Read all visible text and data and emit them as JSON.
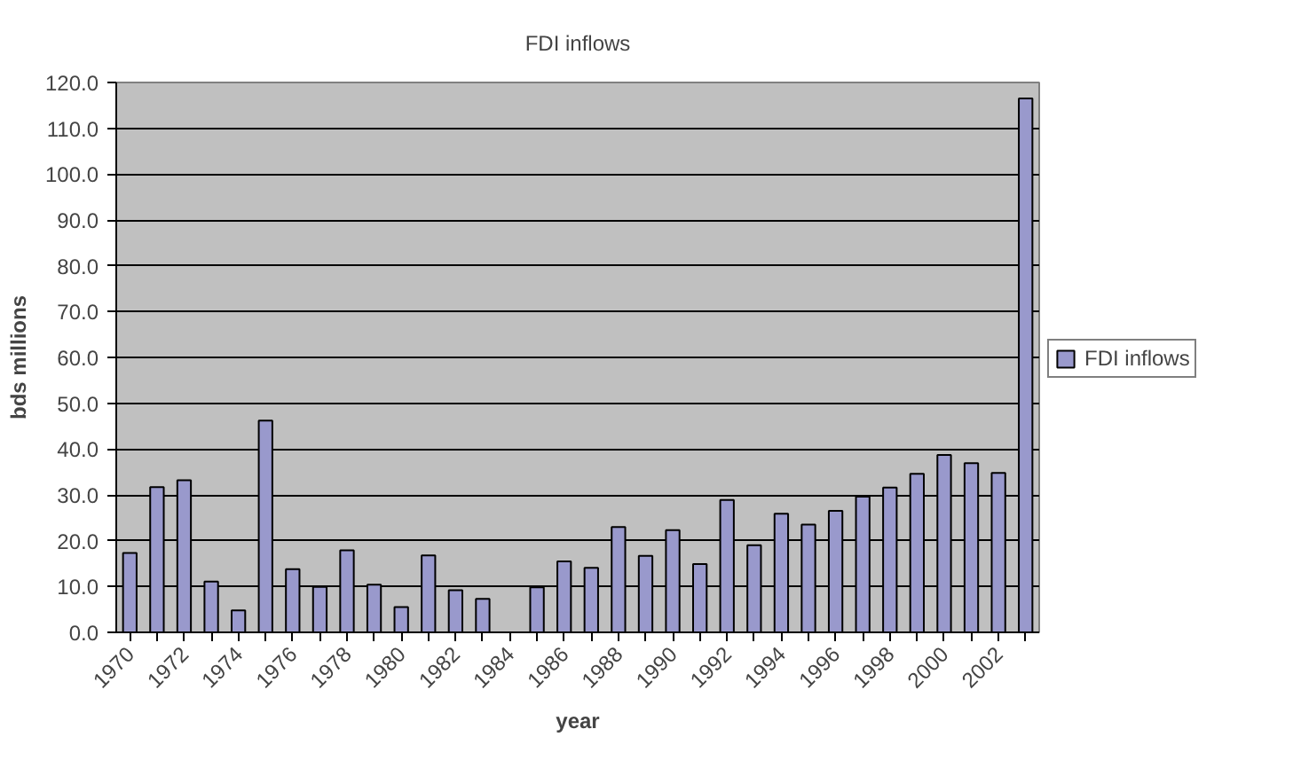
{
  "chart_data": {
    "type": "bar",
    "title": "FDI inflows",
    "xlabel": "year",
    "ylabel": "bds millions",
    "categories": [
      "1970",
      null,
      "1972",
      null,
      "1974",
      null,
      "1976",
      null,
      "1978",
      null,
      "1980",
      null,
      "1982",
      null,
      "1984",
      null,
      "1986",
      null,
      "1988",
      null,
      "1990",
      null,
      "1992",
      null,
      "1994",
      null,
      "1996",
      null,
      "1998",
      null,
      "2000",
      null,
      "2002",
      null
    ],
    "series": [
      {
        "name": "FDI inflows",
        "color": "#9999cc",
        "values": [
          17.3,
          31.7,
          33.2,
          11.1,
          4.8,
          46.2,
          13.8,
          9.9,
          17.9,
          10.4,
          5.5,
          16.8,
          9.2,
          7.3,
          null,
          9.8,
          15.5,
          14.1,
          23.0,
          16.7,
          22.3,
          14.9,
          28.9,
          19.0,
          25.9,
          23.5,
          26.5,
          29.6,
          31.6,
          34.6,
          38.7,
          36.9,
          34.8,
          116.5
        ]
      }
    ],
    "ylim": [
      0,
      120
    ],
    "yticks": [
      {
        "value": 0,
        "label": "0.0"
      },
      {
        "value": 10,
        "label": "10.0"
      },
      {
        "value": 20,
        "label": "20.0"
      },
      {
        "value": 30,
        "label": "30.0"
      },
      {
        "value": 40,
        "label": "40.0"
      },
      {
        "value": 50,
        "label": "50.0"
      },
      {
        "value": 60,
        "label": "60.0"
      },
      {
        "value": 70,
        "label": "70.0"
      },
      {
        "value": 80,
        "label": "80.0"
      },
      {
        "value": 90,
        "label": "90.0"
      },
      {
        "value": 100,
        "label": "100.0"
      },
      {
        "value": 110,
        "label": "110.0"
      },
      {
        "value": 120,
        "label": "120.0"
      }
    ],
    "grid": "y",
    "legend": "right"
  }
}
